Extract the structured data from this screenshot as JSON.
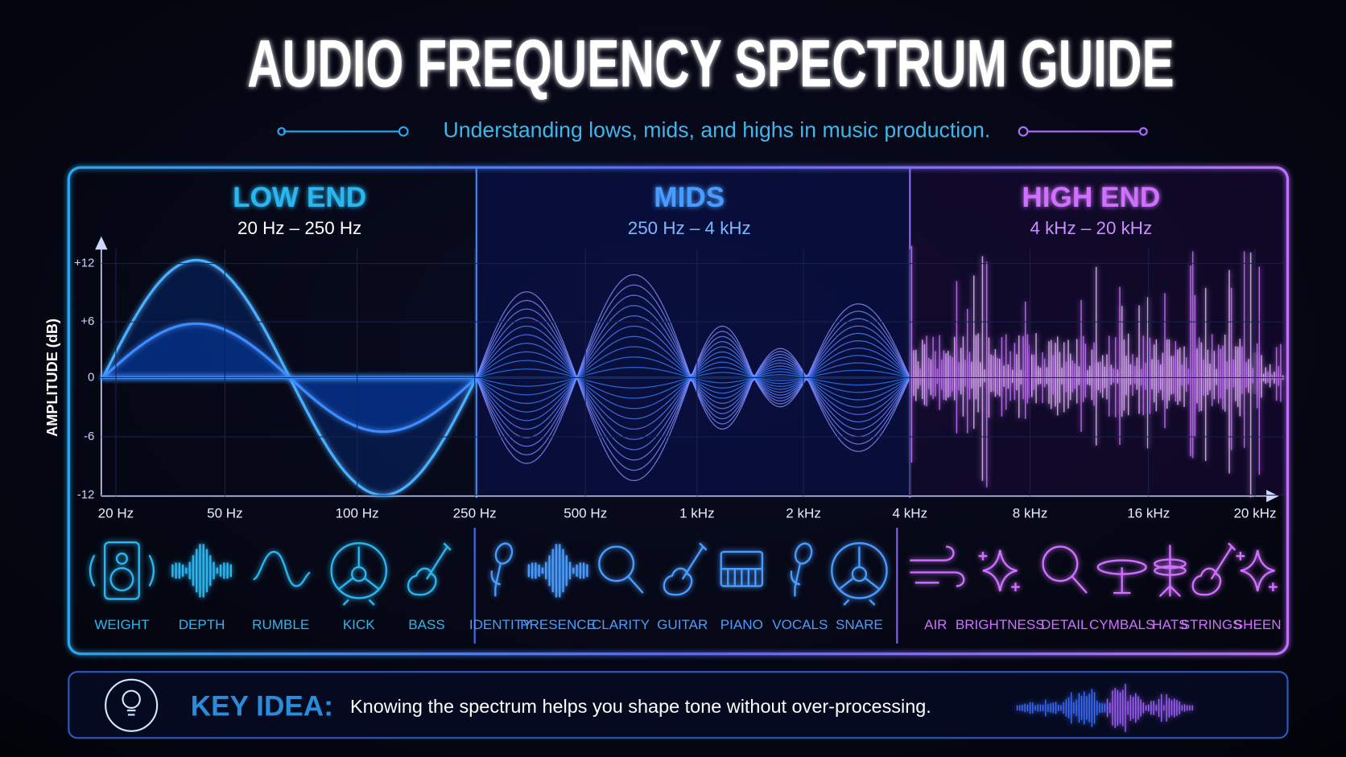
{
  "header": {
    "title": "AUDIO FREQUENCY SPECTRUM GUIDE",
    "subtitle": "Understanding lows, mids, and highs in music production."
  },
  "sections": [
    {
      "title": "LOW END",
      "range": "20 Hz – 250 Hz",
      "items": [
        "WEIGHT",
        "DEPTH",
        "RUMBLE",
        "KICK",
        "BASS"
      ]
    },
    {
      "title": "MIDS",
      "range": "250 Hz – 4 kHz",
      "items": [
        "IDENTITY",
        "PRESENCE",
        "CLARITY",
        "GUITAR",
        "PIANO",
        "VOCALS",
        "SNARE"
      ]
    },
    {
      "title": "HIGH END",
      "range": "4 kHz – 20 kHz",
      "items": [
        "AIR",
        "BRIGHTNESS",
        "DETAIL",
        "CYMBALS",
        "HATS",
        "STRINGS",
        "SHEEN"
      ]
    }
  ],
  "y_axis": {
    "label": "AMPLITUDE (dB)",
    "ticks": [
      "+12",
      "+6",
      "0",
      "-6",
      "-12"
    ]
  },
  "x_axis": {
    "ticks": [
      "20 Hz",
      "50 Hz",
      "100 Hz",
      "250 Hz",
      "500 Hz",
      "1 kHz",
      "2 kHz",
      "4 kHz",
      "8 kHz",
      "16 kHz",
      "20 kHz"
    ]
  },
  "key_idea": {
    "label": "KEY IDEA:",
    "text": "Knowing the spectrum helps you shape tone without over-processing."
  }
}
